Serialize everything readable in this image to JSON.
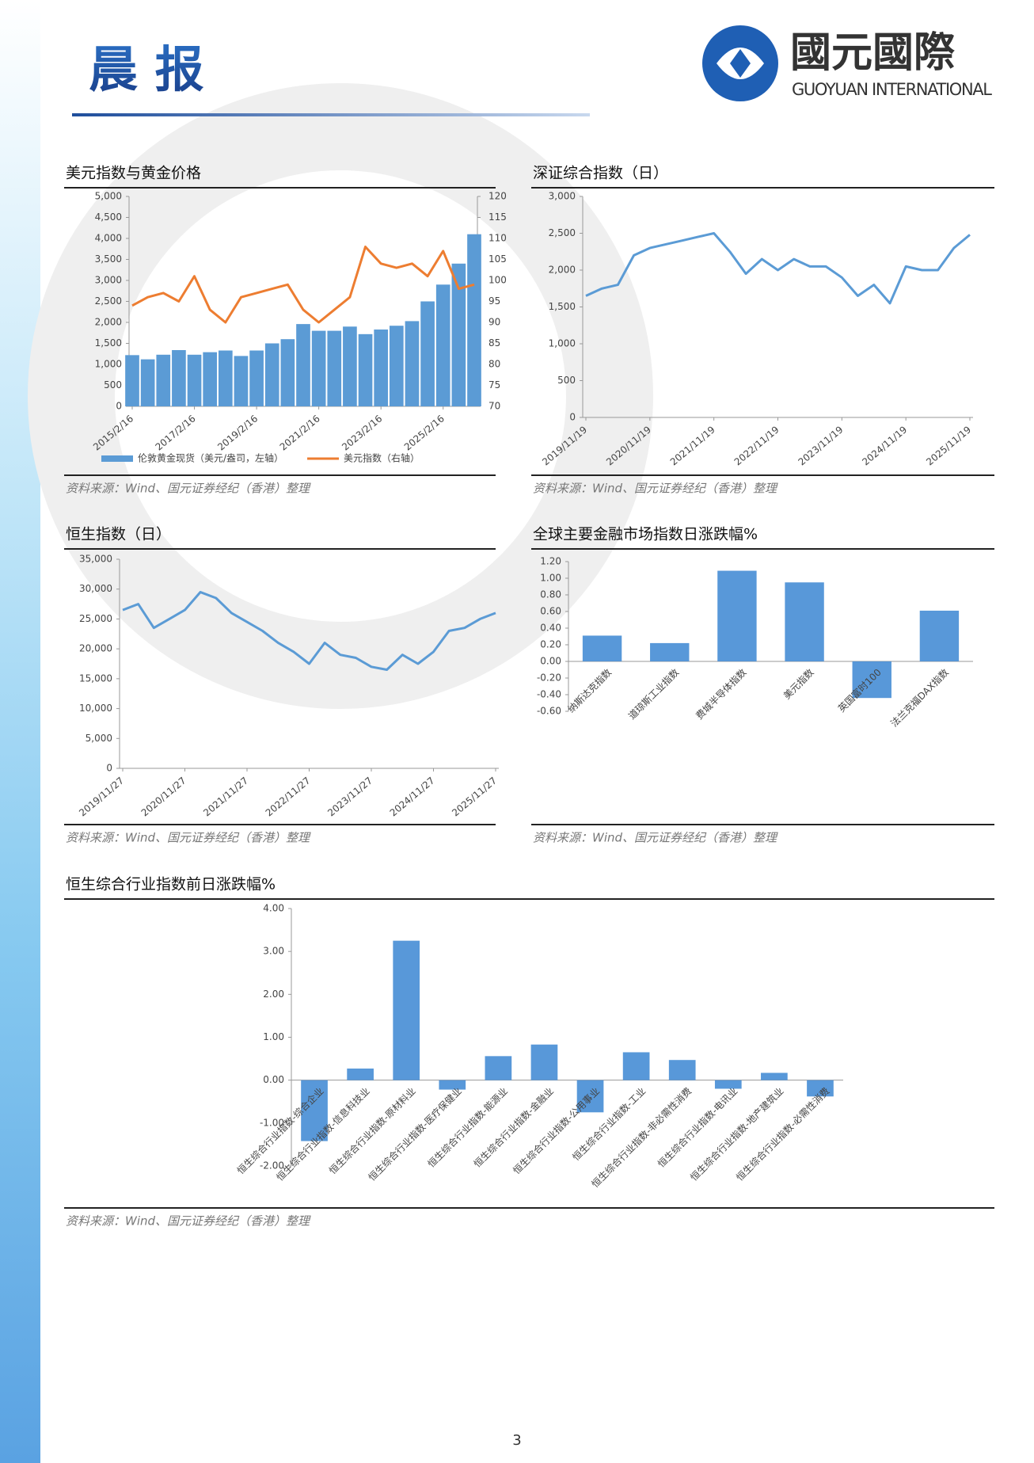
{
  "header": {
    "title": "晨 报",
    "logo_cn": "國元國際",
    "logo_en": "GUOYUAN INTERNATIONAL"
  },
  "page_number": "3",
  "chart_data": [
    {
      "type": "combo",
      "title": "美元指数与黄金价格",
      "source": "资料来源：Wind、国元证券经纪（香港）整理",
      "categories": [
        "2015/2/16",
        null,
        null,
        null,
        "2017/2/16",
        null,
        null,
        null,
        "2019/2/16",
        null,
        null,
        null,
        "2021/2/16",
        null,
        null,
        null,
        "2023/2/16",
        null,
        null,
        null,
        "2025/2/16",
        null,
        null
      ],
      "series": [
        {
          "name": "伦敦黄金现货（美元/盎司，左轴）",
          "type": "bar",
          "color": "#5b9bd5",
          "values": [
            1220,
            1120,
            1230,
            1340,
            1230,
            1290,
            1330,
            1200,
            1330,
            1500,
            1600,
            1960,
            1800,
            1800,
            1900,
            1720,
            1830,
            1920,
            2030,
            2500,
            2900,
            3400,
            4100
          ]
        },
        {
          "name": "美元指数（右轴）",
          "type": "line",
          "axis": "y2",
          "color": "#ed7d31",
          "values": [
            94,
            96,
            97,
            95,
            101,
            93,
            90,
            96,
            97,
            98,
            99,
            93,
            90,
            93,
            96,
            108,
            104,
            103,
            104,
            101,
            107,
            98,
            99
          ]
        }
      ],
      "ylim": [
        0,
        5000
      ],
      "yticks": [
        0,
        500,
        {
          "value": 1000,
          "label": "1,000"
        },
        {
          "value": 1500,
          "label": "1,500"
        },
        {
          "value": 2000,
          "label": "2,000"
        },
        {
          "value": 2500,
          "label": "2,500"
        },
        {
          "value": 3000,
          "label": "3,000"
        },
        {
          "value": 3500,
          "label": "3,500"
        },
        {
          "value": 4000,
          "label": "4,000"
        },
        {
          "value": 4500,
          "label": "4,500"
        },
        {
          "value": 5000,
          "label": "5,000"
        }
      ],
      "y2lim": [
        70,
        120
      ],
      "y2ticks": [
        70,
        75,
        80,
        85,
        90,
        95,
        100,
        105,
        110,
        115,
        120
      ],
      "legend": "bottom"
    },
    {
      "type": "line",
      "title": "深证综合指数（日）",
      "source": "资料来源：Wind、国元证券经纪（香港）整理",
      "color": "#5b9bd5",
      "categories": [
        "2019/11/19",
        null,
        null,
        null,
        "2020/11/19",
        null,
        null,
        null,
        "2021/11/19",
        null,
        null,
        null,
        "2022/11/19",
        null,
        null,
        null,
        "2023/11/19",
        null,
        null,
        null,
        "2024/11/19",
        null,
        null,
        null,
        "2025/11/19"
      ],
      "values": [
        1650,
        1750,
        1800,
        2200,
        2300,
        2350,
        2400,
        2450,
        2500,
        2250,
        1950,
        2150,
        2000,
        2150,
        2050,
        2050,
        1900,
        1650,
        1800,
        1550,
        2050,
        2000,
        2000,
        2300,
        2480
      ],
      "ylim": [
        0,
        3000
      ],
      "yticks": [
        0,
        500,
        {
          "value": 1000,
          "label": "1,000"
        },
        {
          "value": 1500,
          "label": "1,500"
        },
        {
          "value": 2000,
          "label": "2,000"
        },
        {
          "value": 2500,
          "label": "2,500"
        },
        {
          "value": 3000,
          "label": "3,000"
        }
      ]
    },
    {
      "type": "line",
      "title": "恒生指数（日）",
      "source": "资料来源：Wind、国元证券经纪（香港）整理",
      "color": "#5b9bd5",
      "categories": [
        "2019/11/27",
        null,
        null,
        null,
        "2020/11/27",
        null,
        null,
        null,
        "2021/11/27",
        null,
        null,
        null,
        "2022/11/27",
        null,
        null,
        null,
        "2023/11/27",
        null,
        null,
        null,
        "2024/11/27",
        null,
        null,
        null,
        "2025/11/27"
      ],
      "values": [
        26500,
        27500,
        23500,
        25000,
        26500,
        29500,
        28500,
        26000,
        24500,
        23000,
        21000,
        19500,
        17500,
        21000,
        19000,
        18500,
        17000,
        16500,
        19000,
        17500,
        19500,
        23000,
        23500,
        25000,
        26000
      ],
      "ylim": [
        0,
        35000
      ],
      "yticks": [
        0,
        {
          "value": 5000,
          "label": "5,000"
        },
        {
          "value": 10000,
          "label": "10,000"
        },
        {
          "value": 15000,
          "label": "15,000"
        },
        {
          "value": 20000,
          "label": "20,000"
        },
        {
          "value": 25000,
          "label": "25,000"
        },
        {
          "value": 30000,
          "label": "30,000"
        },
        {
          "value": 35000,
          "label": "35,000"
        }
      ]
    },
    {
      "type": "bar",
      "title": "全球主要金融市场指数日涨跌幅%",
      "source": "资料来源：Wind、国元证券经纪（香港）整理",
      "color": "#4a8fd6",
      "categories": [
        "纳斯达克指数",
        "道琼斯工业指数",
        "费城半导体指数",
        "美元指数",
        "英国富时100",
        "法兰克福DAX指数"
      ],
      "values": [
        0.31,
        0.22,
        1.09,
        0.95,
        -0.44,
        0.61
      ],
      "ylim": [
        -0.6,
        1.2
      ],
      "yticks": [
        {
          "value": -0.6,
          "label": "-0.60"
        },
        {
          "value": -0.4,
          "label": "-0.40"
        },
        {
          "value": -0.2,
          "label": "-0.20"
        },
        {
          "value": 0,
          "label": "0.00"
        },
        {
          "value": 0.2,
          "label": "0.20"
        },
        {
          "value": 0.4,
          "label": "0.40"
        },
        {
          "value": 0.6,
          "label": "0.60"
        },
        {
          "value": 0.8,
          "label": "0.80"
        },
        {
          "value": 1,
          "label": "1.00"
        },
        {
          "value": 1.2,
          "label": "1.20"
        }
      ]
    },
    {
      "type": "bar",
      "title": "恒生综合行业指数前日涨跌幅%",
      "source": "资料来源：Wind、国元证券经纪（香港）整理",
      "color": "#4a8fd6",
      "categories": [
        "恒生综合行业指数-综合企业",
        "恒生综合行业指数-信息科技业",
        "恒生综合行业指数-原材料业",
        "恒生综合行业指数-医疗保健业",
        "恒生综合行业指数-能源业",
        "恒生综合行业指数-金融业",
        "恒生综合行业指数-公用事业",
        "恒生综合行业指数-工业",
        "恒生综合行业指数-非必需性消费",
        "恒生综合行业指数-电讯业",
        "恒生综合行业指数-地产建筑业",
        "恒生综合行业指数-必需性消费"
      ],
      "values": [
        -1.42,
        0.27,
        3.25,
        -0.22,
        0.56,
        0.83,
        -0.75,
        0.65,
        0.47,
        -0.2,
        0.17,
        -0.38
      ],
      "ylim": [
        -2,
        4
      ],
      "yticks": [
        {
          "value": -2,
          "label": "-2.00"
        },
        {
          "value": -1,
          "label": "-1.00"
        },
        {
          "value": 0,
          "label": "0.00"
        },
        {
          "value": 1,
          "label": "1.00"
        },
        {
          "value": 2,
          "label": "2.00"
        },
        {
          "value": 3,
          "label": "3.00"
        },
        {
          "value": 4,
          "label": "4.00"
        }
      ]
    }
  ]
}
